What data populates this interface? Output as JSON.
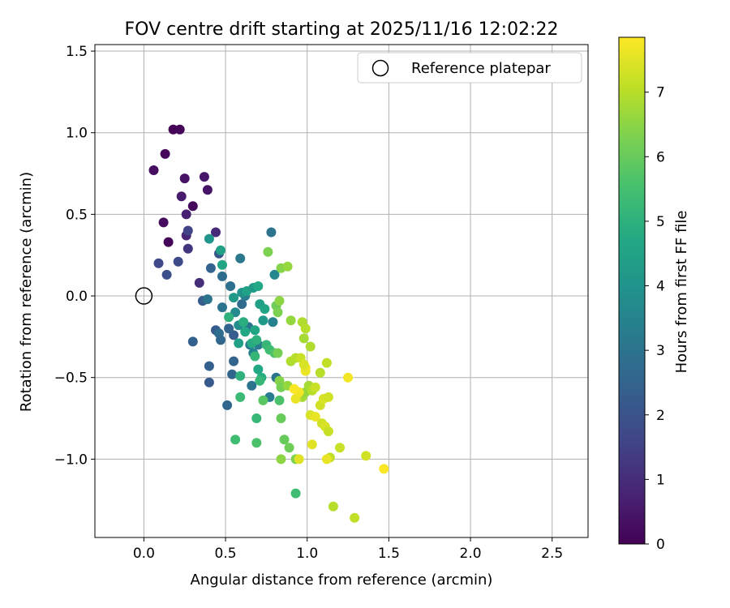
{
  "chart_data": {
    "type": "scatter",
    "title": "FOV centre drift starting at 2025/11/16 12:02:22",
    "xlabel": "Angular distance from reference (arcmin)",
    "ylabel": "Rotation from reference (arcmin)",
    "xlim": [
      -0.3,
      2.72
    ],
    "ylim": [
      -1.48,
      1.54
    ],
    "xticks": [
      0.0,
      0.5,
      1.0,
      1.5,
      2.0,
      2.5
    ],
    "xtick_labels": [
      "0.0",
      "0.5",
      "1.0",
      "1.5",
      "2.0",
      "2.5"
    ],
    "yticks": [
      -1.0,
      -0.5,
      0.0,
      0.5,
      1.0,
      1.5
    ],
    "ytick_labels": [
      "−1.0",
      "−0.5",
      "0.0",
      "0.5",
      "1.0",
      "1.5"
    ],
    "grid": true,
    "legend": {
      "position": "top-right",
      "label": "Reference platepar"
    },
    "reference_point": {
      "x": 0.0,
      "y": 0.0
    },
    "colorbar": {
      "label": "Hours from first FF file",
      "min": 0,
      "max": 7.85,
      "ticks": [
        0,
        1,
        2,
        3,
        4,
        5,
        6,
        7
      ],
      "tick_labels": [
        "0",
        "1",
        "2",
        "3",
        "4",
        "5",
        "6",
        "7"
      ],
      "colormap": "viridis"
    },
    "points": [
      [
        0.18,
        1.02,
        0.05
      ],
      [
        0.22,
        1.02,
        0.1
      ],
      [
        0.13,
        0.87,
        0.15
      ],
      [
        0.06,
        0.77,
        0.3
      ],
      [
        0.25,
        0.72,
        0.4
      ],
      [
        0.37,
        0.73,
        0.5
      ],
      [
        0.39,
        0.65,
        0.45
      ],
      [
        0.23,
        0.61,
        0.6
      ],
      [
        0.3,
        0.55,
        0.2
      ],
      [
        0.26,
        0.5,
        0.7
      ],
      [
        0.12,
        0.45,
        0.25
      ],
      [
        0.15,
        0.33,
        0.1
      ],
      [
        0.26,
        0.37,
        0.8
      ],
      [
        0.44,
        0.39,
        0.9
      ],
      [
        0.27,
        0.4,
        1.6
      ],
      [
        0.09,
        0.2,
        1.7
      ],
      [
        0.21,
        0.21,
        1.8
      ],
      [
        0.14,
        0.13,
        1.9
      ],
      [
        0.34,
        0.08,
        1.0
      ],
      [
        0.27,
        0.29,
        1.2
      ],
      [
        0.46,
        0.26,
        2.1
      ],
      [
        0.41,
        0.17,
        2.5
      ],
      [
        0.48,
        0.12,
        2.8
      ],
      [
        0.36,
        -0.03,
        2.3
      ],
      [
        0.39,
        -0.02,
        3.0
      ],
      [
        0.3,
        -0.28,
        2.4
      ],
      [
        0.44,
        -0.21,
        2.2
      ],
      [
        0.46,
        -0.23,
        2.8
      ],
      [
        0.47,
        -0.27,
        2.6
      ],
      [
        0.55,
        -0.24,
        2.3
      ],
      [
        0.52,
        -0.2,
        2.5
      ],
      [
        0.48,
        -0.07,
        3.0
      ],
      [
        0.53,
        0.06,
        2.9
      ],
      [
        0.6,
        -0.05,
        2.7
      ],
      [
        0.59,
        0.23,
        3.1
      ],
      [
        0.62,
        0.0,
        3.3
      ],
      [
        0.64,
        -0.19,
        3.0
      ],
      [
        0.65,
        -0.3,
        3.2
      ],
      [
        0.67,
        -0.35,
        3.5
      ],
      [
        0.7,
        -0.3,
        3.2
      ],
      [
        0.54,
        -0.48,
        2.6
      ],
      [
        0.55,
        -0.4,
        2.5
      ],
      [
        0.4,
        -0.43,
        2.4
      ],
      [
        0.4,
        -0.53,
        2.2
      ],
      [
        0.51,
        -0.67,
        2.6
      ],
      [
        0.66,
        -0.55,
        3.0
      ],
      [
        0.77,
        -0.62,
        3.3
      ],
      [
        0.78,
        0.39,
        3.0
      ],
      [
        0.8,
        0.13,
        3.6
      ],
      [
        0.79,
        -0.16,
        3.4
      ],
      [
        0.81,
        -0.5,
        3.0
      ],
      [
        0.58,
        -0.18,
        3.8
      ],
      [
        0.56,
        -0.1,
        3.7
      ],
      [
        0.55,
        -0.01,
        4.2
      ],
      [
        0.6,
        0.02,
        4.0
      ],
      [
        0.63,
        0.03,
        4.5
      ],
      [
        0.67,
        0.05,
        4.2
      ],
      [
        0.7,
        0.06,
        4.7
      ],
      [
        0.71,
        -0.05,
        4.4
      ],
      [
        0.74,
        -0.08,
        4.6
      ],
      [
        0.73,
        -0.15,
        4.2
      ],
      [
        0.68,
        -0.21,
        4.6
      ],
      [
        0.66,
        -0.29,
        4.8
      ],
      [
        0.69,
        -0.27,
        5.0
      ],
      [
        0.75,
        -0.3,
        5.2
      ],
      [
        0.77,
        -0.33,
        5.4
      ],
      [
        0.8,
        -0.35,
        5.6
      ],
      [
        0.68,
        -0.37,
        5.2
      ],
      [
        0.72,
        -0.5,
        4.9
      ],
      [
        0.7,
        -0.45,
        4.7
      ],
      [
        0.71,
        -0.52,
        5.2
      ],
      [
        0.59,
        -0.49,
        5.0
      ],
      [
        0.58,
        -0.29,
        4.4
      ],
      [
        0.62,
        -0.22,
        4.7
      ],
      [
        0.61,
        -0.16,
        4.9
      ],
      [
        0.52,
        -0.13,
        5.0
      ],
      [
        0.47,
        0.28,
        4.4
      ],
      [
        0.48,
        0.19,
        4.6
      ],
      [
        0.4,
        0.35,
        4.1
      ],
      [
        0.59,
        -0.62,
        5.3
      ],
      [
        0.56,
        -0.88,
        5.4
      ],
      [
        0.69,
        -0.75,
        5.2
      ],
      [
        0.69,
        -0.9,
        5.6
      ],
      [
        0.73,
        -0.64,
        5.8
      ],
      [
        0.83,
        -0.64,
        5.6
      ],
      [
        0.84,
        -0.75,
        6.0
      ],
      [
        0.86,
        -0.88,
        6.0
      ],
      [
        0.89,
        -0.93,
        6.1
      ],
      [
        0.93,
        -1.0,
        6.3
      ],
      [
        0.93,
        -1.21,
        5.4
      ],
      [
        0.84,
        -1.0,
        6.5
      ],
      [
        0.83,
        -0.52,
        6.4
      ],
      [
        0.84,
        -0.56,
        6.2
      ],
      [
        0.88,
        -0.55,
        6.6
      ],
      [
        0.82,
        -0.35,
        6.2
      ],
      [
        0.81,
        -0.06,
        6.1
      ],
      [
        0.82,
        -0.1,
        6.3
      ],
      [
        0.83,
        -0.03,
        6.5
      ],
      [
        0.76,
        0.27,
        6.3
      ],
      [
        0.84,
        0.17,
        6.4
      ],
      [
        0.88,
        0.18,
        6.6
      ],
      [
        0.9,
        -0.15,
        6.6
      ],
      [
        0.9,
        -0.4,
        6.9
      ],
      [
        0.93,
        -0.38,
        7.0
      ],
      [
        0.96,
        -0.38,
        7.2
      ],
      [
        0.98,
        -0.26,
        6.8
      ],
      [
        0.97,
        -0.16,
        6.9
      ],
      [
        0.99,
        -0.2,
        7.0
      ],
      [
        1.02,
        -0.31,
        6.9
      ],
      [
        0.97,
        -0.62,
        6.8
      ],
      [
        0.99,
        -0.59,
        6.6
      ],
      [
        1.01,
        -0.55,
        6.8
      ],
      [
        1.03,
        -0.58,
        7.0
      ],
      [
        1.05,
        -0.56,
        7.2
      ],
      [
        1.08,
        -0.47,
        7.0
      ],
      [
        1.12,
        -0.41,
        7.1
      ],
      [
        1.08,
        -0.67,
        7.3
      ],
      [
        1.09,
        -0.78,
        7.3
      ],
      [
        1.11,
        -0.8,
        7.4
      ],
      [
        1.13,
        -0.83,
        7.2
      ],
      [
        1.1,
        -0.63,
        7.4
      ],
      [
        1.13,
        -0.62,
        7.3
      ],
      [
        1.14,
        -0.99,
        7.1
      ],
      [
        1.12,
        -1.0,
        7.6
      ],
      [
        1.16,
        -1.29,
        7.0
      ],
      [
        1.2,
        -0.93,
        7.2
      ],
      [
        1.29,
        -1.36,
        7.1
      ],
      [
        1.36,
        -0.98,
        7.3
      ],
      [
        1.47,
        -1.06,
        7.8
      ],
      [
        1.25,
        -0.5,
        7.7
      ],
      [
        1.03,
        -0.91,
        7.5
      ],
      [
        1.02,
        -0.73,
        7.4
      ],
      [
        1.05,
        -0.74,
        7.6
      ],
      [
        0.95,
        -1.0,
        7.5
      ],
      [
        0.93,
        -0.63,
        7.6
      ],
      [
        0.95,
        -0.59,
        7.7
      ],
      [
        0.92,
        -0.57,
        7.8
      ],
      [
        0.99,
        -0.44,
        7.8
      ],
      [
        0.99,
        -0.46,
        7.6
      ],
      [
        0.98,
        -0.42,
        7.4
      ]
    ]
  }
}
